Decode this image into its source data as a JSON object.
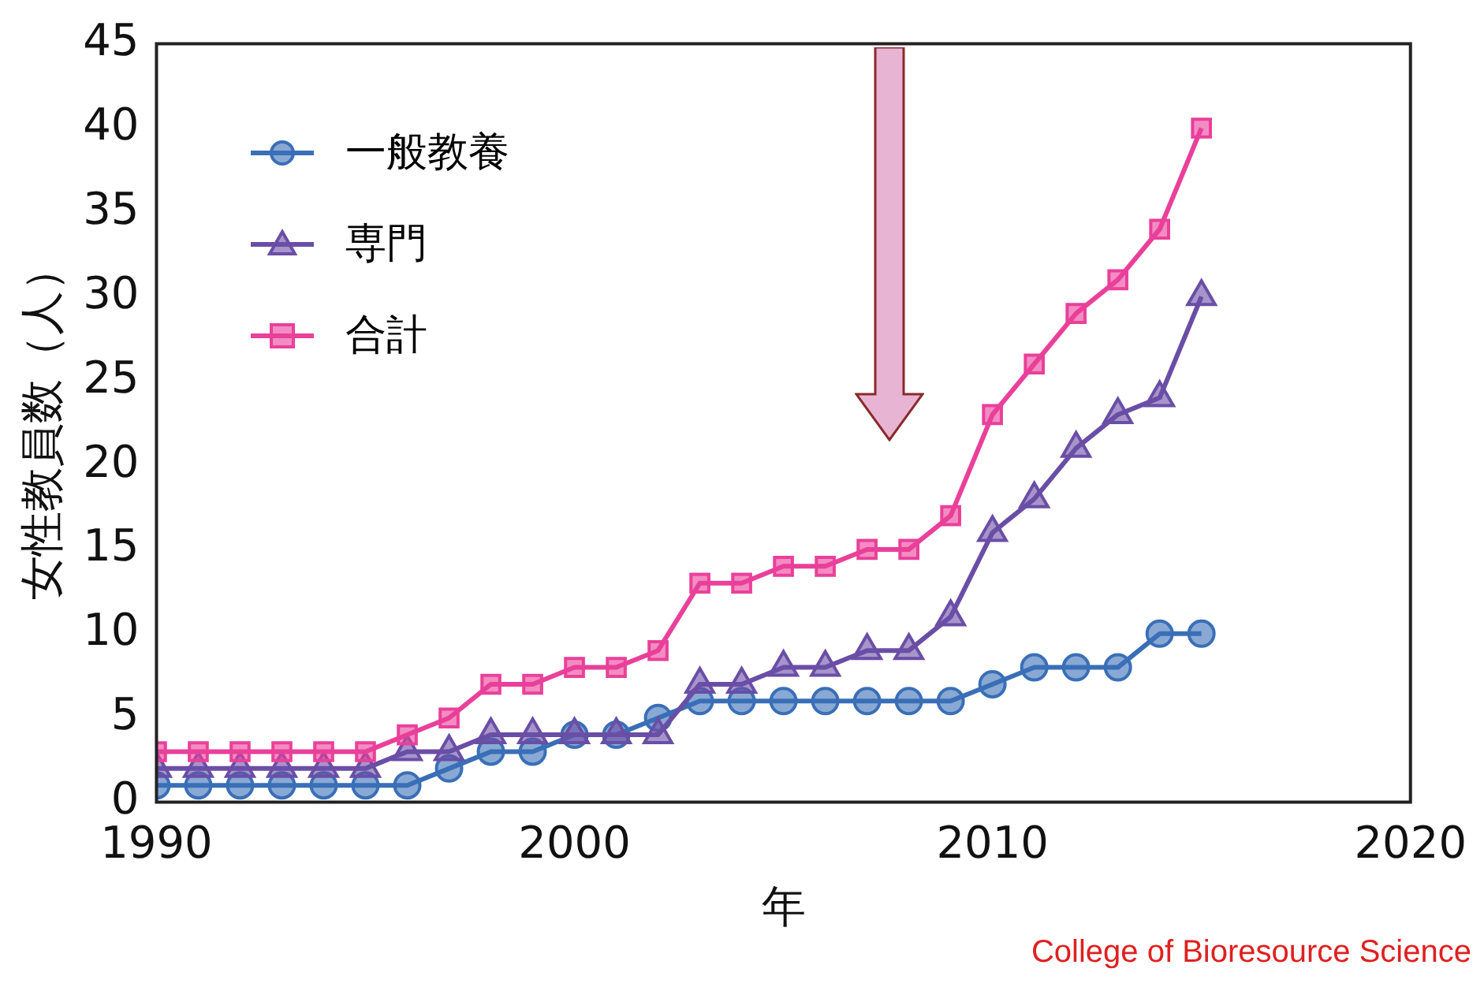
{
  "chart_data": {
    "type": "line",
    "xlabel": "年",
    "ylabel": "女性教員数（人）",
    "x": [
      1990,
      1991,
      1992,
      1993,
      1994,
      1995,
      1996,
      1997,
      1998,
      1999,
      2000,
      2001,
      2002,
      2003,
      2004,
      2005,
      2006,
      2007,
      2008,
      2009,
      2010,
      2011,
      2012,
      2013,
      2014,
      2015
    ],
    "series": [
      {
        "name": "一般教養",
        "color": "#3a6fb7",
        "marker": "circle",
        "values": [
          1,
          1,
          1,
          1,
          1,
          1,
          1,
          2,
          3,
          3,
          4,
          4,
          5,
          6,
          6,
          6,
          6,
          6,
          6,
          6,
          7,
          8,
          8,
          8,
          10,
          10
        ]
      },
      {
        "name": "専門",
        "color": "#6a4ea6",
        "marker": "triangle",
        "values": [
          2,
          2,
          2,
          2,
          2,
          2,
          3,
          3,
          4,
          4,
          4,
          4,
          4,
          7,
          7,
          8,
          8,
          9,
          9,
          11,
          16,
          18,
          21,
          23,
          24,
          30
        ]
      },
      {
        "name": "合計",
        "color": "#e9409a",
        "marker": "square",
        "values": [
          3,
          3,
          3,
          3,
          3,
          3,
          4,
          5,
          7,
          7,
          8,
          8,
          9,
          13,
          13,
          14,
          14,
          15,
          15,
          17,
          23,
          26,
          29,
          31,
          34,
          40
        ]
      }
    ],
    "xlim": [
      1990,
      2020
    ],
    "xticks": [
      1990,
      2000,
      2010,
      2020
    ],
    "ylim": [
      0,
      45
    ],
    "yticks": [
      0,
      5,
      10,
      15,
      20,
      25,
      30,
      35,
      40,
      45
    ],
    "grid": false,
    "legend": "top left",
    "line_style": "solid",
    "annotations": [
      "College of Bioresource Science"
    ]
  }
}
